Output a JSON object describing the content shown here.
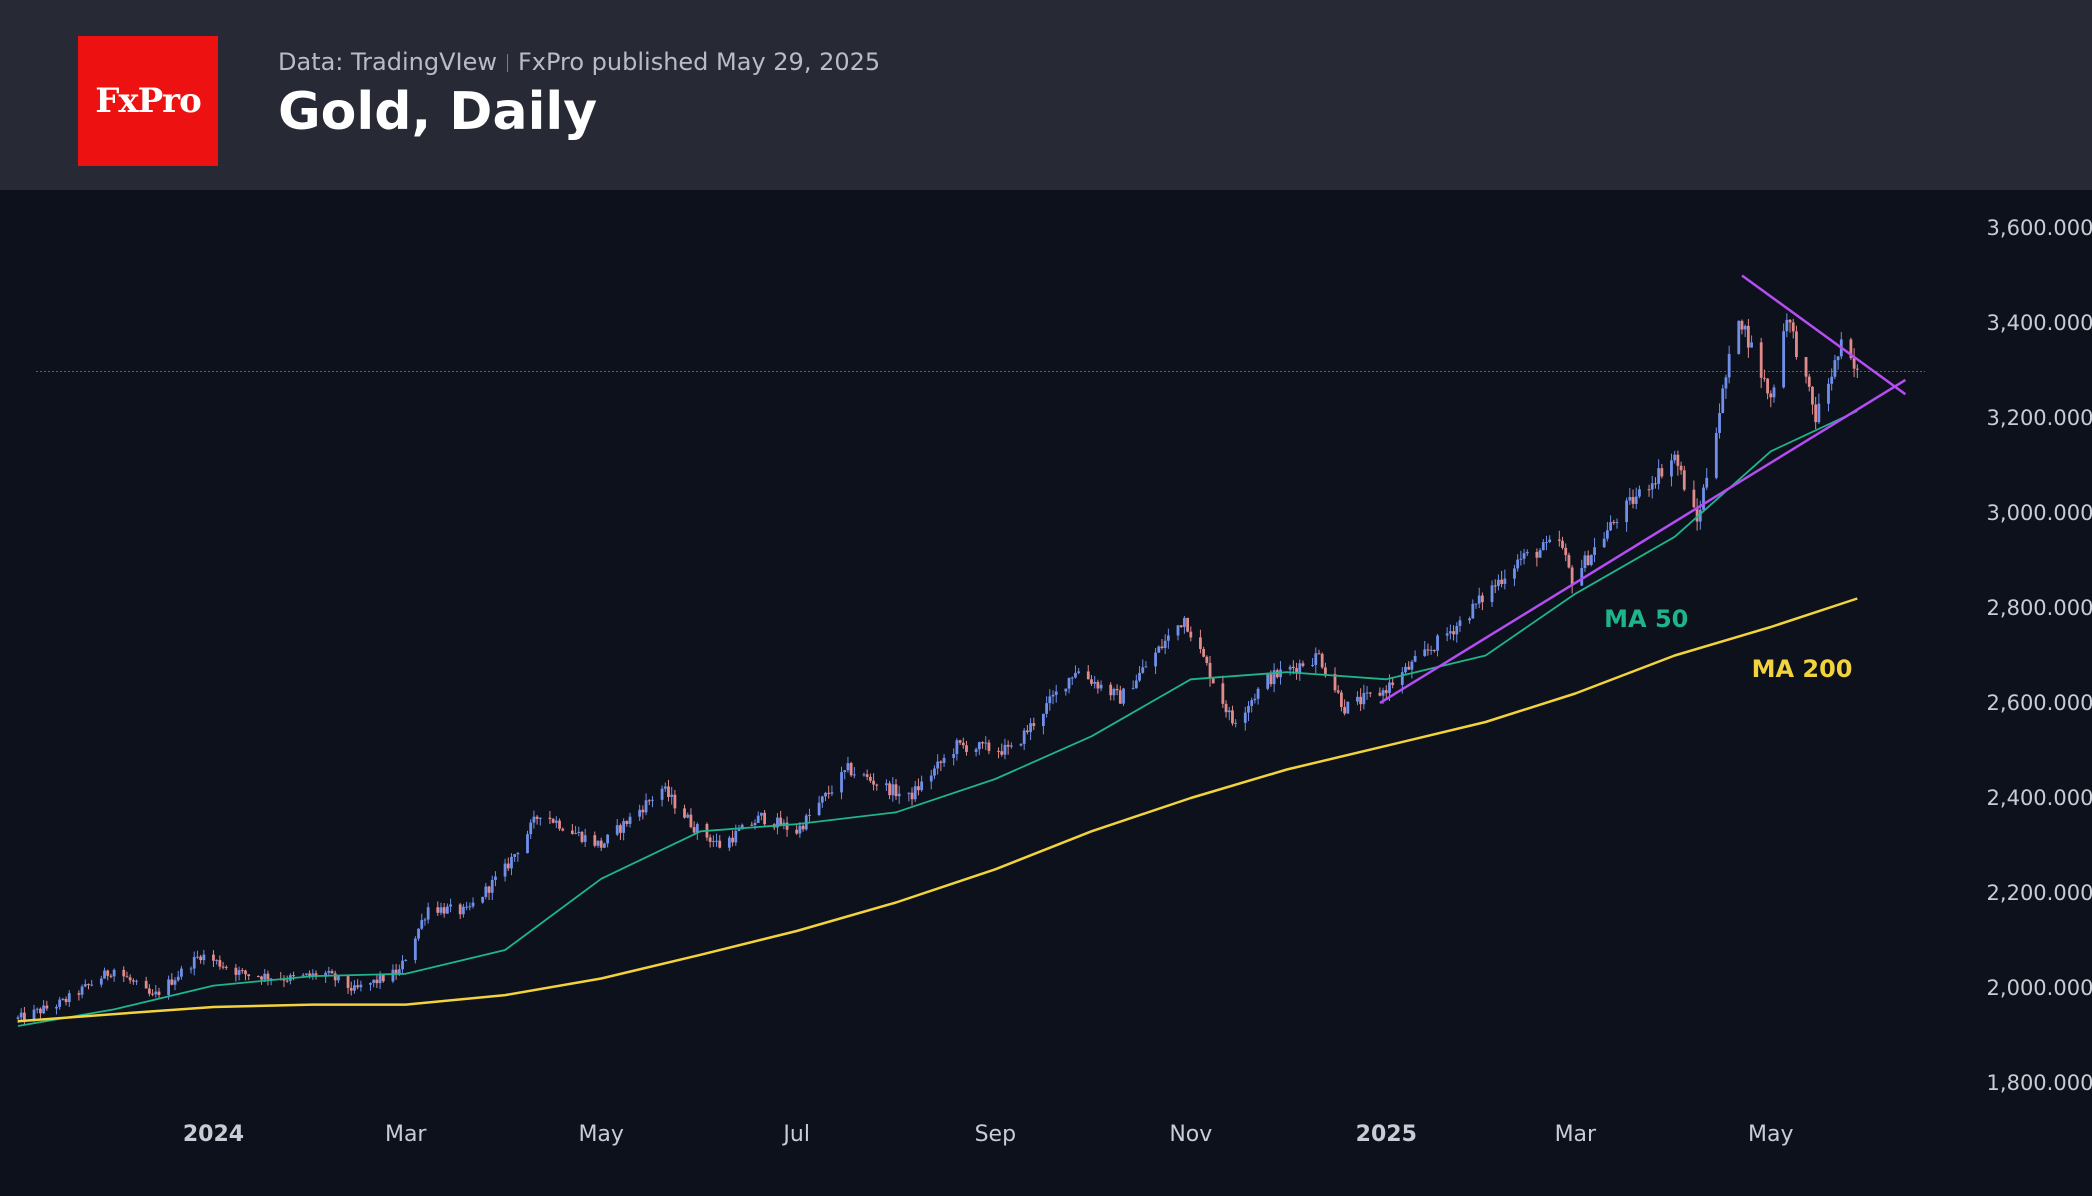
{
  "header": {
    "logo_text": "FxPro",
    "source": "Data: TradingVIew",
    "published": "FxPro published May 29, 2025",
    "title": "Gold, Daily",
    "background": "#272a34",
    "logo_color": "#ee1111"
  },
  "chart_data": {
    "type": "candlestick",
    "title": "Gold, Daily",
    "ylim": [
      1800,
      3600
    ],
    "y_ticks": [
      {
        "value": 3600,
        "label": "3,600.000"
      },
      {
        "value": 3400,
        "label": "3,400.000"
      },
      {
        "value": 3200,
        "label": "3,200.000"
      },
      {
        "value": 3000,
        "label": "3,000.000"
      },
      {
        "value": 2800,
        "label": "2,800.000"
      },
      {
        "value": 2600,
        "label": "2,600.000"
      },
      {
        "value": 2400,
        "label": "2,400.000"
      },
      {
        "value": 2200,
        "label": "2,200.000"
      },
      {
        "value": 2000,
        "label": "2,000.000"
      },
      {
        "value": 1800,
        "label": "1,800.000"
      }
    ],
    "x_range": [
      "2023-11-01",
      "2025-06-15"
    ],
    "x_ticks": [
      {
        "date": "2024-01-01",
        "label": "2024",
        "bold": true
      },
      {
        "date": "2024-03-01",
        "label": "Mar",
        "bold": false
      },
      {
        "date": "2024-05-01",
        "label": "May",
        "bold": false
      },
      {
        "date": "2024-07-01",
        "label": "Jul",
        "bold": false
      },
      {
        "date": "2024-09-01",
        "label": "Sep",
        "bold": false
      },
      {
        "date": "2024-11-01",
        "label": "Nov",
        "bold": false
      },
      {
        "date": "2025-01-01",
        "label": "2025",
        "bold": true
      },
      {
        "date": "2025-03-01",
        "label": "Mar",
        "bold": false
      },
      {
        "date": "2025-05-01",
        "label": "May",
        "bold": false
      }
    ],
    "price_path": [
      [
        "2023-11-01",
        1935
      ],
      [
        "2023-11-15",
        1970
      ],
      [
        "2023-12-01",
        2040
      ],
      [
        "2023-12-13",
        1980
      ],
      [
        "2023-12-28",
        2070
      ],
      [
        "2024-01-10",
        2030
      ],
      [
        "2024-01-25",
        2020
      ],
      [
        "2024-02-05",
        2030
      ],
      [
        "2024-02-14",
        1995
      ],
      [
        "2024-02-28",
        2035
      ],
      [
        "2024-03-08",
        2170
      ],
      [
        "2024-03-20",
        2160
      ],
      [
        "2024-04-01",
        2250
      ],
      [
        "2024-04-12",
        2370
      ],
      [
        "2024-04-22",
        2330
      ],
      [
        "2024-05-01",
        2300
      ],
      [
        "2024-05-20",
        2420
      ],
      [
        "2024-05-30",
        2340
      ],
      [
        "2024-06-07",
        2300
      ],
      [
        "2024-06-20",
        2360
      ],
      [
        "2024-07-01",
        2330
      ],
      [
        "2024-07-17",
        2460
      ],
      [
        "2024-08-05",
        2400
      ],
      [
        "2024-08-20",
        2510
      ],
      [
        "2024-09-06",
        2500
      ],
      [
        "2024-09-26",
        2670
      ],
      [
        "2024-10-10",
        2610
      ],
      [
        "2024-10-30",
        2780
      ],
      [
        "2024-11-14",
        2560
      ],
      [
        "2024-11-25",
        2650
      ],
      [
        "2024-12-11",
        2700
      ],
      [
        "2024-12-19",
        2590
      ],
      [
        "2024-12-31",
        2625
      ],
      [
        "2025-01-24",
        2770
      ],
      [
        "2025-02-11",
        2900
      ],
      [
        "2025-02-24",
        2940
      ],
      [
        "2025-02-28",
        2860
      ],
      [
        "2025-03-14",
        2990
      ],
      [
        "2025-04-01",
        3120
      ],
      [
        "2025-04-08",
        2980
      ],
      [
        "2025-04-21",
        3420
      ],
      [
        "2025-05-01",
        3240
      ],
      [
        "2025-05-06",
        3420
      ],
      [
        "2025-05-15",
        3200
      ],
      [
        "2025-05-23",
        3350
      ],
      [
        "2025-05-28",
        3290
      ]
    ],
    "current_price": 3298,
    "series": [
      {
        "name": "MA 50",
        "color": "#1fb58a",
        "points": [
          [
            "2023-11-01",
            1920
          ],
          [
            "2023-12-01",
            1955
          ],
          [
            "2024-01-01",
            2005
          ],
          [
            "2024-02-01",
            2025
          ],
          [
            "2024-03-01",
            2030
          ],
          [
            "2024-04-01",
            2080
          ],
          [
            "2024-05-01",
            2230
          ],
          [
            "2024-06-01",
            2330
          ],
          [
            "2024-07-01",
            2345
          ],
          [
            "2024-08-01",
            2370
          ],
          [
            "2024-09-01",
            2440
          ],
          [
            "2024-10-01",
            2530
          ],
          [
            "2024-11-01",
            2650
          ],
          [
            "2024-12-01",
            2665
          ],
          [
            "2025-01-01",
            2650
          ],
          [
            "2025-02-01",
            2700
          ],
          [
            "2025-03-01",
            2830
          ],
          [
            "2025-04-01",
            2950
          ],
          [
            "2025-05-01",
            3130
          ],
          [
            "2025-05-28",
            3215
          ]
        ]
      },
      {
        "name": "MA 200",
        "color": "#f2d33c",
        "points": [
          [
            "2023-11-01",
            1930
          ],
          [
            "2023-12-01",
            1945
          ],
          [
            "2024-01-01",
            1960
          ],
          [
            "2024-02-01",
            1965
          ],
          [
            "2024-03-01",
            1965
          ],
          [
            "2024-04-01",
            1985
          ],
          [
            "2024-05-01",
            2020
          ],
          [
            "2024-06-01",
            2070
          ],
          [
            "2024-07-01",
            2120
          ],
          [
            "2024-08-01",
            2180
          ],
          [
            "2024-09-01",
            2250
          ],
          [
            "2024-10-01",
            2330
          ],
          [
            "2024-11-01",
            2400
          ],
          [
            "2024-12-01",
            2460
          ],
          [
            "2025-01-01",
            2510
          ],
          [
            "2025-02-01",
            2560
          ],
          [
            "2025-03-01",
            2620
          ],
          [
            "2025-04-01",
            2700
          ],
          [
            "2025-05-01",
            2760
          ],
          [
            "2025-05-28",
            2820
          ]
        ]
      }
    ],
    "trendlines": [
      {
        "name": "upper",
        "color": "#b44df2",
        "from": [
          "2025-04-22",
          3500
        ],
        "to": [
          "2025-06-12",
          3250
        ]
      },
      {
        "name": "lower",
        "color": "#b44df2",
        "from": [
          "2024-12-30",
          2600
        ],
        "to": [
          "2025-06-12",
          3280
        ]
      }
    ],
    "annotations": [
      {
        "text": "MA 50",
        "date": "2025-03-10",
        "value": 2760,
        "color": "#1fb58a"
      },
      {
        "text": "MA 200",
        "date": "2025-04-25",
        "value": 2655,
        "color": "#f2d33c"
      }
    ],
    "up_color": "#6f8fe8",
    "down_color": "#e08a8a",
    "grid": false
  }
}
